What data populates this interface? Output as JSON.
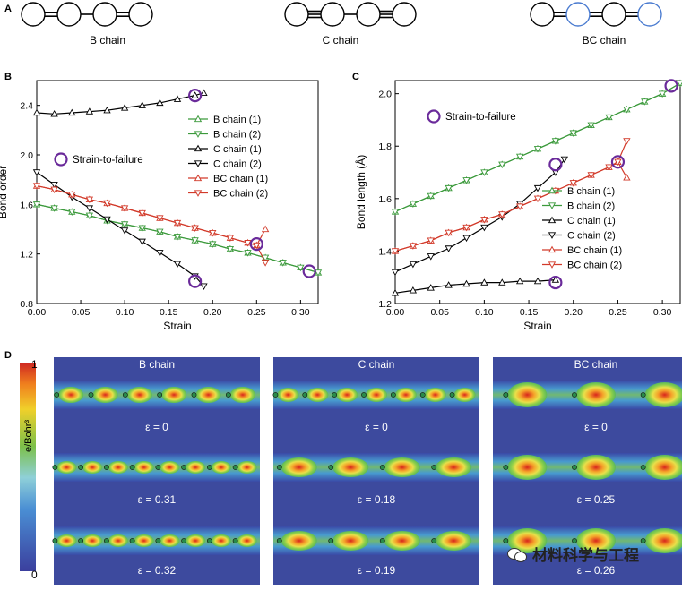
{
  "panelA": {
    "label": "A",
    "chains": [
      {
        "name": "B chain",
        "bonds": [
          "double",
          "single",
          "double"
        ],
        "ring": [
          "#000000",
          "#000000",
          "#000000",
          "#000000"
        ]
      },
      {
        "name": "C chain",
        "bonds": [
          "triple",
          "single",
          "triple"
        ],
        "ring": [
          "#000000",
          "#000000",
          "#000000",
          "#000000"
        ]
      },
      {
        "name": "BC chain",
        "bonds": [
          "double",
          "double",
          "double"
        ],
        "ring": [
          "#000000",
          "#4a7bd0",
          "#000000",
          "#4a7bd0"
        ]
      }
    ]
  },
  "chart_data": [
    {
      "panel": "B",
      "type": "line",
      "xlabel": "Strain",
      "ylabel": "Bond order",
      "xlim": [
        0,
        0.32
      ],
      "ylim": [
        0.8,
        2.6
      ],
      "xticks": [
        "0.00",
        "0.05",
        "0.10",
        "0.15",
        "0.20",
        "0.25",
        "0.30"
      ],
      "yticks": [
        "0.8",
        "1.2",
        "1.6",
        "2.0",
        "2.4"
      ],
      "legend": [
        "B chain (1)",
        "B chain (2)",
        "C chain (1)",
        "C chain (2)",
        "BC chain (1)",
        "BC chain (2)"
      ],
      "annotation": "Strain-to-failure",
      "series": [
        {
          "name": "B chain (1)",
          "color": "#3c9a3c",
          "marker": "tri-up",
          "x": [
            0,
            0.02,
            0.04,
            0.06,
            0.08,
            0.1,
            0.12,
            0.14,
            0.16,
            0.18,
            0.2,
            0.22,
            0.24,
            0.26,
            0.28,
            0.3,
            0.32
          ],
          "y": [
            1.6,
            1.57,
            1.54,
            1.51,
            1.47,
            1.44,
            1.41,
            1.38,
            1.34,
            1.31,
            1.28,
            1.24,
            1.21,
            1.17,
            1.13,
            1.09,
            1.05
          ]
        },
        {
          "name": "B chain (2)",
          "color": "#3c9a3c",
          "marker": "tri-down",
          "x": [
            0,
            0.02,
            0.04,
            0.06,
            0.08,
            0.1,
            0.12,
            0.14,
            0.16,
            0.18,
            0.2,
            0.22,
            0.24,
            0.26,
            0.28,
            0.3,
            0.32
          ],
          "y": [
            1.6,
            1.57,
            1.54,
            1.51,
            1.47,
            1.44,
            1.41,
            1.38,
            1.34,
            1.31,
            1.28,
            1.24,
            1.21,
            1.17,
            1.13,
            1.09,
            1.05
          ]
        },
        {
          "name": "C chain (1)",
          "color": "#000000",
          "marker": "tri-up",
          "x": [
            0,
            0.02,
            0.04,
            0.06,
            0.08,
            0.1,
            0.12,
            0.14,
            0.16,
            0.18,
            0.19
          ],
          "y": [
            2.34,
            2.33,
            2.34,
            2.35,
            2.36,
            2.38,
            2.4,
            2.42,
            2.45,
            2.48,
            2.5
          ]
        },
        {
          "name": "C chain (2)",
          "color": "#000000",
          "marker": "tri-down",
          "x": [
            0,
            0.02,
            0.04,
            0.06,
            0.08,
            0.1,
            0.12,
            0.14,
            0.16,
            0.18,
            0.19
          ],
          "y": [
            1.86,
            1.76,
            1.66,
            1.57,
            1.48,
            1.39,
            1.3,
            1.21,
            1.12,
            1.02,
            0.94
          ]
        },
        {
          "name": "BC chain (1)",
          "color": "#d23a2a",
          "marker": "tri-up",
          "x": [
            0,
            0.02,
            0.04,
            0.06,
            0.08,
            0.1,
            0.12,
            0.14,
            0.16,
            0.18,
            0.2,
            0.22,
            0.24,
            0.25,
            0.26
          ],
          "y": [
            1.75,
            1.72,
            1.68,
            1.64,
            1.61,
            1.57,
            1.53,
            1.49,
            1.45,
            1.41,
            1.37,
            1.33,
            1.29,
            1.27,
            1.4
          ]
        },
        {
          "name": "BC chain (2)",
          "color": "#d23a2a",
          "marker": "tri-down",
          "x": [
            0,
            0.02,
            0.04,
            0.06,
            0.08,
            0.1,
            0.12,
            0.14,
            0.16,
            0.18,
            0.2,
            0.22,
            0.24,
            0.25,
            0.26
          ],
          "y": [
            1.75,
            1.72,
            1.68,
            1.64,
            1.61,
            1.57,
            1.53,
            1.49,
            1.45,
            1.41,
            1.37,
            1.33,
            1.29,
            1.27,
            1.13
          ]
        }
      ],
      "failure_points": [
        {
          "x": 0.18,
          "y": 2.48
        },
        {
          "x": 0.18,
          "y": 0.98
        },
        {
          "x": 0.25,
          "y": 1.28
        },
        {
          "x": 0.31,
          "y": 1.06
        }
      ]
    },
    {
      "panel": "C",
      "type": "line",
      "xlabel": "Strain",
      "ylabel": "Bond length (Å)",
      "xlim": [
        0,
        0.32
      ],
      "ylim": [
        1.2,
        2.05
      ],
      "xticks": [
        "0.00",
        "0.05",
        "0.10",
        "0.15",
        "0.20",
        "0.25",
        "0.30"
      ],
      "yticks": [
        "1.2",
        "1.4",
        "1.6",
        "1.8",
        "2.0"
      ],
      "legend": [
        "B chain (1)",
        "B chain (2)",
        "C chain (1)",
        "C chain (2)",
        "BC chain (1)",
        "BC chain (2)"
      ],
      "annotation": "Strain-to-failure",
      "series": [
        {
          "name": "B chain (1)",
          "color": "#3c9a3c",
          "marker": "tri-up",
          "x": [
            0,
            0.02,
            0.04,
            0.06,
            0.08,
            0.1,
            0.12,
            0.14,
            0.16,
            0.18,
            0.2,
            0.22,
            0.24,
            0.26,
            0.28,
            0.3,
            0.32
          ],
          "y": [
            1.55,
            1.58,
            1.61,
            1.64,
            1.67,
            1.7,
            1.73,
            1.76,
            1.79,
            1.82,
            1.85,
            1.88,
            1.91,
            1.94,
            1.97,
            2.0,
            2.04
          ]
        },
        {
          "name": "B chain (2)",
          "color": "#3c9a3c",
          "marker": "tri-down",
          "x": [
            0,
            0.02,
            0.04,
            0.06,
            0.08,
            0.1,
            0.12,
            0.14,
            0.16,
            0.18,
            0.2,
            0.22,
            0.24,
            0.26,
            0.28,
            0.3,
            0.32
          ],
          "y": [
            1.55,
            1.58,
            1.61,
            1.64,
            1.67,
            1.7,
            1.73,
            1.76,
            1.79,
            1.82,
            1.85,
            1.88,
            1.91,
            1.94,
            1.97,
            2.0,
            2.04
          ]
        },
        {
          "name": "C chain (1)",
          "color": "#000000",
          "marker": "tri-up",
          "x": [
            0,
            0.02,
            0.04,
            0.06,
            0.08,
            0.1,
            0.12,
            0.14,
            0.16,
            0.18
          ],
          "y": [
            1.24,
            1.25,
            1.26,
            1.27,
            1.275,
            1.28,
            1.28,
            1.285,
            1.285,
            1.29
          ]
        },
        {
          "name": "C chain (2)",
          "color": "#000000",
          "marker": "tri-down",
          "x": [
            0,
            0.02,
            0.04,
            0.06,
            0.08,
            0.1,
            0.12,
            0.14,
            0.16,
            0.18,
            0.19
          ],
          "y": [
            1.32,
            1.35,
            1.38,
            1.41,
            1.45,
            1.49,
            1.53,
            1.58,
            1.64,
            1.7,
            1.75
          ]
        },
        {
          "name": "BC chain (1)",
          "color": "#d23a2a",
          "marker": "tri-up",
          "x": [
            0,
            0.02,
            0.04,
            0.06,
            0.08,
            0.1,
            0.12,
            0.14,
            0.16,
            0.18,
            0.2,
            0.22,
            0.24,
            0.25,
            0.26
          ],
          "y": [
            1.4,
            1.42,
            1.44,
            1.47,
            1.49,
            1.52,
            1.54,
            1.57,
            1.6,
            1.63,
            1.66,
            1.69,
            1.72,
            1.74,
            1.68
          ]
        },
        {
          "name": "BC chain (2)",
          "color": "#d23a2a",
          "marker": "tri-down",
          "x": [
            0,
            0.02,
            0.04,
            0.06,
            0.08,
            0.1,
            0.12,
            0.14,
            0.16,
            0.18,
            0.2,
            0.22,
            0.24,
            0.25,
            0.26
          ],
          "y": [
            1.4,
            1.42,
            1.44,
            1.47,
            1.49,
            1.52,
            1.54,
            1.57,
            1.6,
            1.63,
            1.66,
            1.69,
            1.72,
            1.74,
            1.82
          ]
        }
      ],
      "failure_points": [
        {
          "x": 0.18,
          "y": 1.73
        },
        {
          "x": 0.18,
          "y": 1.28
        },
        {
          "x": 0.25,
          "y": 1.74
        },
        {
          "x": 0.31,
          "y": 2.03
        }
      ]
    }
  ],
  "panelD": {
    "label": "D",
    "colorbar": {
      "max": "1",
      "min": "0",
      "unit": "e/Bohr³",
      "unit_rendered": "e/Bohr³"
    },
    "maps": [
      {
        "title": "B chain",
        "strains": [
          "ε = 0",
          "ε = 0.31",
          "ε = 0.32"
        ]
      },
      {
        "title": "C chain",
        "strains": [
          "ε = 0",
          "ε = 0.18",
          "ε = 0.19"
        ]
      },
      {
        "title": "BC chain",
        "strains": [
          "ε = 0",
          "ε = 0.25",
          "ε = 0.26"
        ]
      }
    ]
  },
  "watermark": {
    "text": "材料科学与工程",
    "icon": "wechat-icon"
  }
}
